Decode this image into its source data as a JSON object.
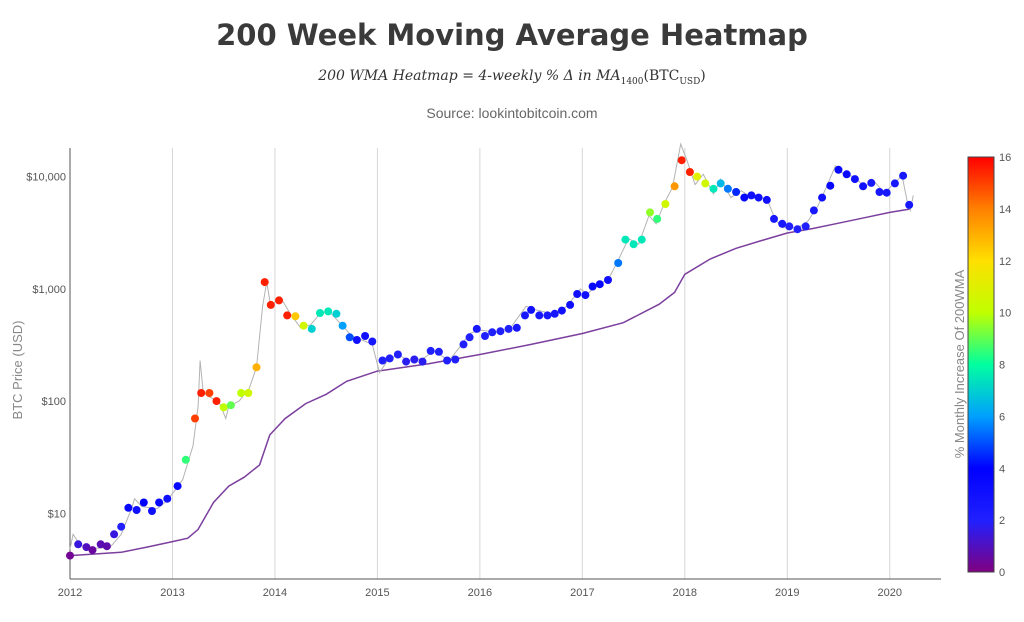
{
  "chart_data": {
    "type": "scatter",
    "title": "200 Week Moving Average Heatmap",
    "subtitle_prefix": "200 WMA Heatmap = 4-weekly % Δ in MA",
    "subtitle_sub1": "1400",
    "subtitle_mid": "(BTC",
    "subtitle_sub2": "USD",
    "subtitle_end": ")",
    "source": "Source: lookintobitcoin.com",
    "xlabel": "",
    "ylabel": "BTC Price (USD)",
    "colorbar_label": "% Monthly Increase Of 200WMA",
    "y_scale": "log",
    "xlim": [
      2012,
      2020.5
    ],
    "ylim": [
      2.6,
      18000
    ],
    "x_ticks": [
      "2012",
      "2013",
      "2014",
      "2015",
      "2016",
      "2017",
      "2018",
      "2019",
      "2020"
    ],
    "y_ticks": [
      {
        "value": 10,
        "label": "$10"
      },
      {
        "value": 100,
        "label": "$100"
      },
      {
        "value": 1000,
        "label": "$1,000"
      },
      {
        "value": 10000,
        "label": "$10,000"
      }
    ],
    "colorbar_range": [
      0,
      16
    ],
    "colorbar_ticks": [
      "0",
      "2",
      "4",
      "6",
      "8",
      "10",
      "12",
      "14",
      "16"
    ],
    "colorscale": [
      "#800080",
      "#2020ff",
      "#0000ff",
      "#00a0ff",
      "#00ffa0",
      "#c0ff00",
      "#ffe000",
      "#ff8000",
      "#ff0000"
    ],
    "grid": "vertical",
    "series": [
      {
        "name": "",
        "mark": "line",
        "color": "#7b3f9e",
        "points": [
          [
            2012.0,
            4.2
          ],
          [
            2012.5,
            4.5
          ],
          [
            2012.75,
            5.0
          ],
          [
            2013.0,
            5.6
          ],
          [
            2013.15,
            6.0
          ],
          [
            2013.25,
            7.2
          ],
          [
            2013.4,
            12.5
          ],
          [
            2013.55,
            17.5
          ],
          [
            2013.7,
            21.0
          ],
          [
            2013.85,
            27.0
          ],
          [
            2013.95,
            50.0
          ],
          [
            2014.1,
            70.0
          ],
          [
            2014.3,
            95.0
          ],
          [
            2014.5,
            115.0
          ],
          [
            2014.7,
            150.0
          ],
          [
            2015.0,
            185.0
          ],
          [
            2015.5,
            215.0
          ],
          [
            2016.0,
            260.0
          ],
          [
            2016.5,
            320.0
          ],
          [
            2017.0,
            400.0
          ],
          [
            2017.4,
            500.0
          ],
          [
            2017.75,
            730.0
          ],
          [
            2017.9,
            930.0
          ],
          [
            2018.0,
            1350.0
          ],
          [
            2018.25,
            1850.0
          ],
          [
            2018.5,
            2300.0
          ],
          [
            2018.75,
            2700.0
          ],
          [
            2019.0,
            3150.0
          ],
          [
            2019.25,
            3450.0
          ],
          [
            2019.5,
            3850.0
          ],
          [
            2019.75,
            4300.0
          ],
          [
            2020.0,
            4800.0
          ],
          [
            2020.2,
            5150.0
          ]
        ]
      },
      {
        "name": "",
        "mark": "line",
        "color": "#b3b3b3",
        "points": [
          [
            2012.0,
            4.8
          ],
          [
            2012.03,
            6.5
          ],
          [
            2012.1,
            5.2
          ],
          [
            2012.2,
            4.9
          ],
          [
            2012.3,
            4.9
          ],
          [
            2012.4,
            5.1
          ],
          [
            2012.5,
            6.5
          ],
          [
            2012.6,
            11.0
          ],
          [
            2012.63,
            13.5
          ],
          [
            2012.7,
            11.5
          ],
          [
            2012.85,
            11.0
          ],
          [
            2012.95,
            13.0
          ],
          [
            2013.1,
            20.0
          ],
          [
            2013.2,
            40.0
          ],
          [
            2013.25,
            90.0
          ],
          [
            2013.27,
            230.0
          ],
          [
            2013.3,
            120.0
          ],
          [
            2013.35,
            110.0
          ],
          [
            2013.45,
            100.0
          ],
          [
            2013.52,
            70.0
          ],
          [
            2013.55,
            90.0
          ],
          [
            2013.65,
            100.0
          ],
          [
            2013.75,
            130.0
          ],
          [
            2013.82,
            200.0
          ],
          [
            2013.88,
            700.0
          ],
          [
            2013.92,
            1150.0
          ],
          [
            2013.96,
            700.0
          ],
          [
            2014.05,
            850.0
          ],
          [
            2014.15,
            600.0
          ],
          [
            2014.25,
            450.0
          ],
          [
            2014.35,
            480.0
          ],
          [
            2014.45,
            620.0
          ],
          [
            2014.55,
            600.0
          ],
          [
            2014.65,
            480.0
          ],
          [
            2014.75,
            380.0
          ],
          [
            2014.85,
            350.0
          ],
          [
            2014.95,
            320.0
          ],
          [
            2015.02,
            180.0
          ],
          [
            2015.1,
            230.0
          ],
          [
            2015.2,
            260.0
          ],
          [
            2015.3,
            230.0
          ],
          [
            2015.45,
            240.0
          ],
          [
            2015.55,
            280.0
          ],
          [
            2015.7,
            230.0
          ],
          [
            2015.8,
            300.0
          ],
          [
            2015.9,
            400.0
          ],
          [
            2016.0,
            430.0
          ],
          [
            2016.15,
            410.0
          ],
          [
            2016.3,
            450.0
          ],
          [
            2016.45,
            700.0
          ],
          [
            2016.55,
            650.0
          ],
          [
            2016.7,
            600.0
          ],
          [
            2016.85,
            700.0
          ],
          [
            2016.98,
            1000.0
          ],
          [
            2017.05,
            900.0
          ],
          [
            2017.15,
            1100.0
          ],
          [
            2017.25,
            1200.0
          ],
          [
            2017.35,
            1800.0
          ],
          [
            2017.45,
            2800.0
          ],
          [
            2017.55,
            2500.0
          ],
          [
            2017.65,
            4500.0
          ],
          [
            2017.72,
            3800.0
          ],
          [
            2017.8,
            5800.0
          ],
          [
            2017.88,
            8000.0
          ],
          [
            2017.96,
            19500.0
          ],
          [
            2018.02,
            14000.0
          ],
          [
            2018.1,
            8500.0
          ],
          [
            2018.18,
            10500.0
          ],
          [
            2018.28,
            7000.0
          ],
          [
            2018.35,
            9500.0
          ],
          [
            2018.45,
            6500.0
          ],
          [
            2018.55,
            7500.0
          ],
          [
            2018.65,
            6500.0
          ],
          [
            2018.8,
            6400.0
          ],
          [
            2018.88,
            4200.0
          ],
          [
            2018.95,
            3500.0
          ],
          [
            2019.1,
            3500.0
          ],
          [
            2019.2,
            4000.0
          ],
          [
            2019.3,
            5500.0
          ],
          [
            2019.38,
            8000.0
          ],
          [
            2019.47,
            12500.0
          ],
          [
            2019.55,
            10500.0
          ],
          [
            2019.65,
            10000.0
          ],
          [
            2019.75,
            8200.0
          ],
          [
            2019.85,
            9000.0
          ],
          [
            2019.95,
            7200.0
          ],
          [
            2020.03,
            8500.0
          ],
          [
            2020.12,
            10200.0
          ],
          [
            2020.17,
            6000.0
          ],
          [
            2020.2,
            5000.0
          ],
          [
            2020.23,
            6800.0
          ]
        ]
      },
      {
        "name": "",
        "mark": "markers",
        "points": [
          [
            2012.0,
            4.2,
            0.3
          ],
          [
            2012.08,
            5.3,
            1.5
          ],
          [
            2012.16,
            5.0,
            1.0
          ],
          [
            2012.22,
            4.7,
            0.5
          ],
          [
            2012.3,
            5.3,
            0.8
          ],
          [
            2012.36,
            5.1,
            0.7
          ],
          [
            2012.43,
            6.5,
            1.5
          ],
          [
            2012.5,
            7.6,
            2.0
          ],
          [
            2012.57,
            11.2,
            3.5
          ],
          [
            2012.65,
            10.7,
            3.0
          ],
          [
            2012.72,
            12.5,
            4.0
          ],
          [
            2012.8,
            10.5,
            3.0
          ],
          [
            2012.87,
            12.5,
            3.5
          ],
          [
            2012.95,
            13.5,
            3.0
          ],
          [
            2013.05,
            17.5,
            3.5
          ],
          [
            2013.13,
            30.0,
            8.5
          ],
          [
            2013.22,
            70.0,
            15.0
          ],
          [
            2013.28,
            118.0,
            15.5
          ],
          [
            2013.36,
            118.0,
            15.0
          ],
          [
            2013.43,
            100.0,
            15.5
          ],
          [
            2013.5,
            88.0,
            10.0
          ],
          [
            2013.57,
            92.0,
            9.0
          ],
          [
            2013.67,
            118.0,
            10.0
          ],
          [
            2013.74,
            118.0,
            10.5
          ],
          [
            2013.82,
            200.0,
            13.0
          ],
          [
            2013.9,
            1150.0,
            15.5
          ],
          [
            2013.96,
            720.0,
            15.5
          ],
          [
            2014.04,
            790.0,
            15.5
          ],
          [
            2014.12,
            580.0,
            15.5
          ],
          [
            2014.2,
            570.0,
            12.5
          ],
          [
            2014.28,
            470.0,
            10.5
          ],
          [
            2014.36,
            440.0,
            7.0
          ],
          [
            2014.44,
            610.0,
            7.5
          ],
          [
            2014.52,
            630.0,
            7.5
          ],
          [
            2014.6,
            600.0,
            7.0
          ],
          [
            2014.66,
            470.0,
            6.0
          ],
          [
            2014.73,
            370.0,
            5.0
          ],
          [
            2014.8,
            350.0,
            3.0
          ],
          [
            2014.88,
            380.0,
            3.0
          ],
          [
            2014.95,
            340.0,
            2.5
          ],
          [
            2015.05,
            230.0,
            2.0
          ],
          [
            2015.12,
            240.0,
            2.0
          ],
          [
            2015.2,
            260.0,
            2.0
          ],
          [
            2015.28,
            225.0,
            1.8
          ],
          [
            2015.36,
            235.0,
            1.8
          ],
          [
            2015.44,
            225.0,
            1.8
          ],
          [
            2015.52,
            280.0,
            2.0
          ],
          [
            2015.6,
            275.0,
            2.0
          ],
          [
            2015.68,
            230.0,
            2.0
          ],
          [
            2015.76,
            235.0,
            2.0
          ],
          [
            2015.84,
            320.0,
            2.0
          ],
          [
            2015.9,
            370.0,
            2.0
          ],
          [
            2015.97,
            440.0,
            2.5
          ],
          [
            2016.05,
            380.0,
            2.0
          ],
          [
            2016.12,
            410.0,
            2.0
          ],
          [
            2016.2,
            420.0,
            2.0
          ],
          [
            2016.28,
            440.0,
            2.0
          ],
          [
            2016.36,
            450.0,
            2.5
          ],
          [
            2016.44,
            580.0,
            2.5
          ],
          [
            2016.5,
            650.0,
            3.0
          ],
          [
            2016.58,
            580.0,
            2.5
          ],
          [
            2016.66,
            580.0,
            2.5
          ],
          [
            2016.73,
            600.0,
            2.5
          ],
          [
            2016.8,
            640.0,
            3.0
          ],
          [
            2016.88,
            720.0,
            3.0
          ],
          [
            2016.95,
            900.0,
            3.0
          ],
          [
            2017.03,
            880.0,
            3.0
          ],
          [
            2017.1,
            1050.0,
            3.5
          ],
          [
            2017.17,
            1100.0,
            3.5
          ],
          [
            2017.25,
            1200.0,
            3.0
          ],
          [
            2017.35,
            1700.0,
            5.5
          ],
          [
            2017.42,
            2750.0,
            7.5
          ],
          [
            2017.5,
            2500.0,
            7.5
          ],
          [
            2017.58,
            2750.0,
            7.5
          ],
          [
            2017.66,
            4800.0,
            9.5
          ],
          [
            2017.73,
            4200.0,
            8.5
          ],
          [
            2017.81,
            5700.0,
            10.5
          ],
          [
            2017.9,
            8200.0,
            13.5
          ],
          [
            2017.97,
            14000.0,
            15.5
          ],
          [
            2018.05,
            11000.0,
            15.5
          ],
          [
            2018.12,
            10000.0,
            11.0
          ],
          [
            2018.2,
            8700.0,
            10.5
          ],
          [
            2018.28,
            7800.0,
            7.5
          ],
          [
            2018.35,
            8700.0,
            6.5
          ],
          [
            2018.42,
            7800.0,
            5.5
          ],
          [
            2018.5,
            7300.0,
            4.5
          ],
          [
            2018.58,
            6500.0,
            3.5
          ],
          [
            2018.65,
            6800.0,
            3.0
          ],
          [
            2018.72,
            6500.0,
            3.0
          ],
          [
            2018.8,
            6200.0,
            3.0
          ],
          [
            2018.87,
            4200.0,
            2.5
          ],
          [
            2018.95,
            3800.0,
            2.5
          ],
          [
            2019.02,
            3600.0,
            2.0
          ],
          [
            2019.1,
            3400.0,
            2.0
          ],
          [
            2019.18,
            3600.0,
            2.0
          ],
          [
            2019.26,
            5000.0,
            2.5
          ],
          [
            2019.34,
            6500.0,
            3.0
          ],
          [
            2019.42,
            8300.0,
            3.5
          ],
          [
            2019.5,
            11500.0,
            3.5
          ],
          [
            2019.58,
            10500.0,
            3.5
          ],
          [
            2019.66,
            9500.0,
            3.0
          ],
          [
            2019.74,
            8200.0,
            3.0
          ],
          [
            2019.82,
            8800.0,
            2.5
          ],
          [
            2019.9,
            7300.0,
            2.5
          ],
          [
            2019.97,
            7200.0,
            2.5
          ],
          [
            2020.05,
            8700.0,
            2.5
          ],
          [
            2020.13,
            10200.0,
            2.5
          ],
          [
            2020.19,
            5600.0,
            2.5
          ]
        ]
      }
    ]
  }
}
